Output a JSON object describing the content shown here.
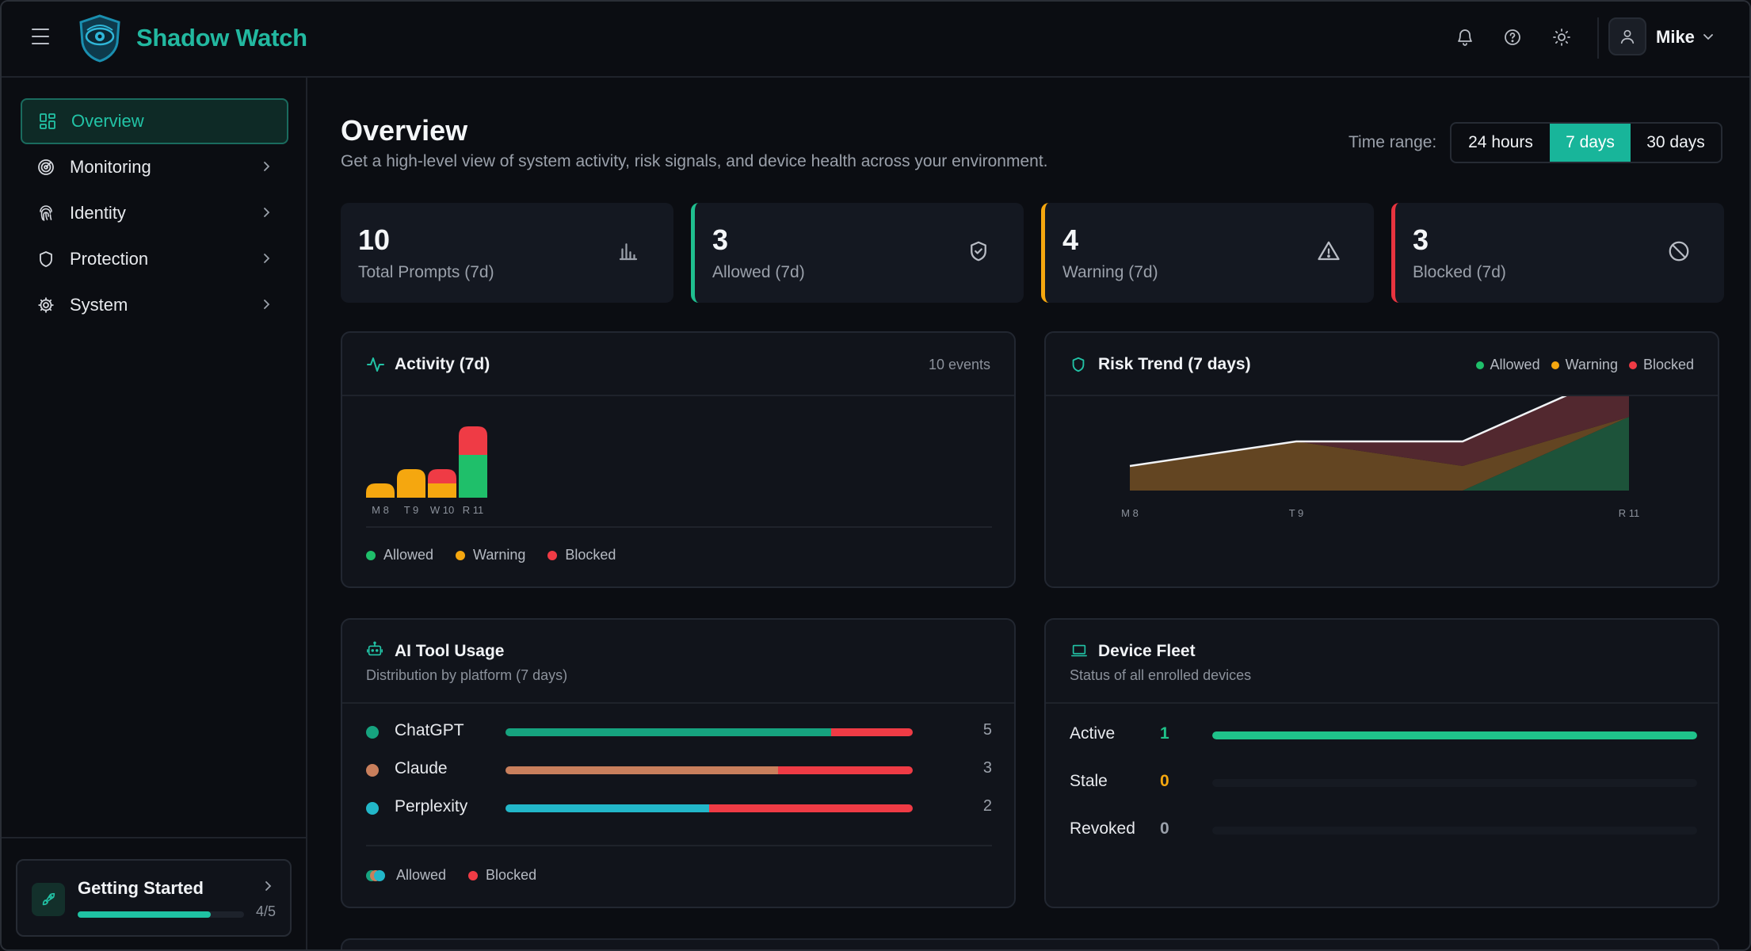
{
  "app": {
    "brand": "Shadow Watch"
  },
  "header": {
    "user_name": "Mike"
  },
  "sidebar": {
    "items": [
      {
        "label": "Overview",
        "icon": "grid-icon",
        "active": true
      },
      {
        "label": "Monitoring",
        "icon": "radar-icon"
      },
      {
        "label": "Identity",
        "icon": "fingerprint-icon"
      },
      {
        "label": "Protection",
        "icon": "shield-icon"
      },
      {
        "label": "System",
        "icon": "gear-icon"
      }
    ],
    "getting_started": {
      "title": "Getting Started",
      "progress": "4/5",
      "progress_fraction": 0.8
    }
  },
  "page": {
    "title": "Overview",
    "subtitle": "Get a high-level view of system activity, risk signals, and device health across your environment.",
    "time_range_label": "Time range:",
    "time_ranges": [
      "24 hours",
      "7 days",
      "30 days"
    ],
    "time_range_selected": "7 days"
  },
  "stats": [
    {
      "value": "10",
      "label": "Total Prompts (7d)",
      "icon": "bar-chart-icon"
    },
    {
      "value": "3",
      "label": "Allowed (7d)",
      "icon": "shield-check-icon",
      "accent": "#1fbf8f"
    },
    {
      "value": "4",
      "label": "Warning (7d)",
      "icon": "warning-triangle-icon",
      "accent": "#f5a70f"
    },
    {
      "value": "3",
      "label": "Blocked (7d)",
      "icon": "blocked-icon",
      "accent": "#e8343f"
    }
  ],
  "activity": {
    "title": "Activity (7d)",
    "events": "10 events",
    "legend": [
      "Allowed",
      "Warning",
      "Blocked"
    ]
  },
  "risk_trend": {
    "title": "Risk Trend (7 days)",
    "legend": [
      "Allowed",
      "Warning",
      "Blocked"
    ]
  },
  "ai_tools": {
    "title": "AI Tool Usage",
    "subtitle": "Distribution by platform (7 days)",
    "tools": [
      {
        "name": "ChatGPT",
        "count": "5",
        "color": "#16a37f",
        "allowed_fraction": 0.8
      },
      {
        "name": "Claude",
        "count": "3",
        "color": "#c97f5c",
        "allowed_fraction": 0.67
      },
      {
        "name": "Perplexity",
        "count": "2",
        "color": "#22b7c9",
        "allowed_fraction": 0.5
      }
    ],
    "legend": [
      "Allowed",
      "Blocked"
    ]
  },
  "device_fleet": {
    "title": "Device Fleet",
    "subtitle": "Status of all enrolled devices",
    "rows": [
      {
        "label": "Active",
        "value": "1",
        "color": "#1fc28a",
        "fraction": 1.0
      },
      {
        "label": "Stale",
        "value": "0",
        "color": "#f5a70f",
        "fraction": 0
      },
      {
        "label": "Revoked",
        "value": "0",
        "color": "#9aa0aa",
        "fraction": 0
      }
    ]
  },
  "colors": {
    "allowed": "#1fbf6a",
    "warning": "#f5a70f",
    "blocked": "#ef3b45",
    "accent": "#1fb89b"
  },
  "chart_data": [
    {
      "type": "bar",
      "title": "Activity (7d)",
      "categories": [
        "M 8",
        "T 9",
        "W 10",
        "R 11"
      ],
      "series": [
        {
          "name": "Allowed",
          "values": [
            0,
            0,
            0,
            3
          ]
        },
        {
          "name": "Warning",
          "values": [
            1,
            2,
            1,
            0
          ]
        },
        {
          "name": "Blocked",
          "values": [
            0,
            0,
            1,
            2
          ]
        }
      ]
    },
    {
      "type": "area",
      "title": "Risk Trend (7 days)",
      "categories": [
        "M 8",
        "T 9",
        "W 10",
        "R 11"
      ],
      "tick_labels": [
        "M 8",
        "T 9",
        "R 11"
      ],
      "series": [
        {
          "name": "Allowed",
          "values": [
            0,
            0,
            0,
            3
          ]
        },
        {
          "name": "Warning",
          "values": [
            1,
            2,
            1,
            0
          ]
        },
        {
          "name": "Blocked",
          "values": [
            0,
            0,
            1,
            2
          ]
        }
      ]
    }
  ]
}
